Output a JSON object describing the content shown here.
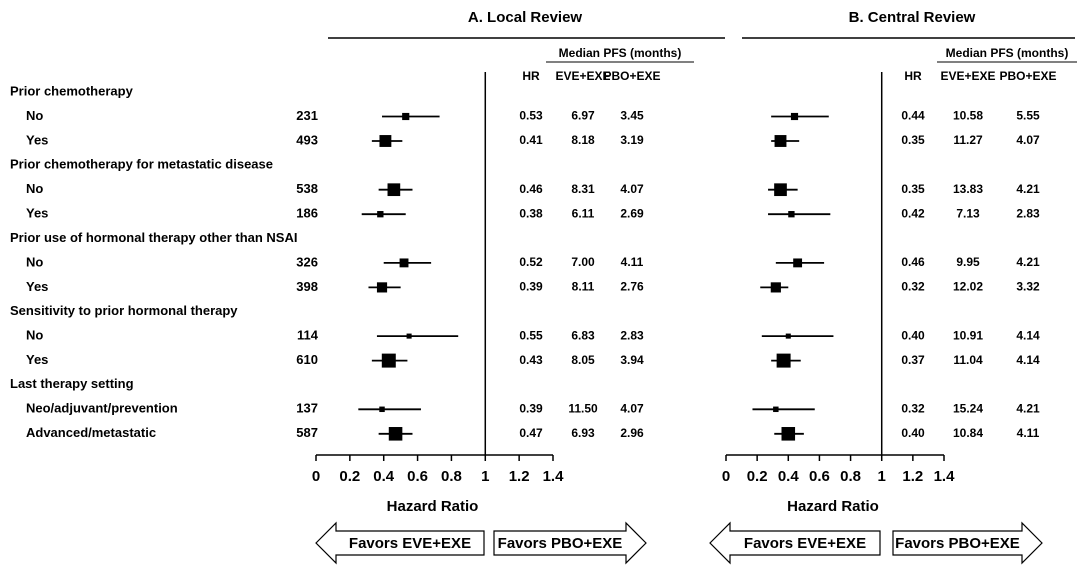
{
  "groups": [
    {
      "label": "Prior chemotherapy",
      "rows": [
        {
          "label": "No",
          "n": 231
        },
        {
          "label": "Yes",
          "n": 493
        }
      ]
    },
    {
      "label": "Prior chemotherapy for metastatic disease",
      "rows": [
        {
          "label": "No",
          "n": 538
        },
        {
          "label": "Yes",
          "n": 186
        }
      ]
    },
    {
      "label": "Prior use of hormonal therapy other than NSAI",
      "rows": [
        {
          "label": "No",
          "n": 326
        },
        {
          "label": "Yes",
          "n": 398
        }
      ]
    },
    {
      "label": "Sensitivity to prior hormonal therapy",
      "rows": [
        {
          "label": "No",
          "n": 114
        },
        {
          "label": "Yes",
          "n": 610
        }
      ]
    },
    {
      "label": "Last therapy setting",
      "rows": [
        {
          "label": "Neo/adjuvant/prevention",
          "n": 137
        },
        {
          "label": "Advanced/metastatic",
          "n": 587
        }
      ]
    }
  ],
  "chart_data": [
    {
      "type": "forest",
      "title": "A. Local Review",
      "table_header": "Median PFS (months)",
      "columns": [
        "HR",
        "EVE+EXE",
        "PBO+EXE"
      ],
      "hr": [
        0.53,
        0.41,
        0.46,
        0.38,
        0.52,
        0.39,
        0.55,
        0.43,
        0.39,
        0.47
      ],
      "value_labels": [
        "0.53",
        "0.41",
        "0.46",
        "0.38",
        "0.52",
        "0.39",
        "0.55",
        "0.43",
        "0.39",
        "0.47"
      ],
      "lower": [
        0.39,
        0.33,
        0.37,
        0.27,
        0.4,
        0.31,
        0.36,
        0.33,
        0.25,
        0.37
      ],
      "upper": [
        0.73,
        0.51,
        0.57,
        0.53,
        0.68,
        0.5,
        0.84,
        0.54,
        0.62,
        0.57
      ],
      "eve": [
        "6.97",
        "8.18",
        "8.31",
        "6.11",
        "7.00",
        "8.11",
        "6.83",
        "8.05",
        "11.50",
        "6.93"
      ],
      "pbo": [
        "3.45",
        "3.19",
        "4.07",
        "2.69",
        "4.11",
        "2.76",
        "2.83",
        "3.94",
        "4.07",
        "2.96"
      ],
      "reference": 1,
      "xlim": [
        0,
        1.4
      ],
      "xticks": [
        0,
        0.2,
        0.4,
        0.6,
        0.8,
        1,
        1.2,
        1.4
      ],
      "xlabel": "Hazard Ratio",
      "arrows": [
        "Favors EVE+EXE",
        "Favors PBO+EXE"
      ],
      "color": "#000000"
    },
    {
      "type": "forest",
      "title": "B. Central Review",
      "table_header": "Median PFS (months)",
      "columns": [
        "HR",
        "EVE+EXE",
        "PBO+EXE"
      ],
      "hr": [
        0.44,
        0.35,
        0.35,
        0.42,
        0.46,
        0.32,
        0.4,
        0.37,
        0.32,
        0.4
      ],
      "value_labels": [
        "0.44",
        "0.35",
        "0.35",
        "0.42",
        "0.46",
        "0.32",
        "0.40",
        "0.37",
        "0.32",
        "0.40"
      ],
      "lower": [
        0.29,
        0.29,
        0.27,
        0.27,
        0.32,
        0.22,
        0.23,
        0.29,
        0.17,
        0.31
      ],
      "upper": [
        0.66,
        0.47,
        0.46,
        0.67,
        0.63,
        0.4,
        0.69,
        0.48,
        0.57,
        0.5
      ],
      "eve": [
        "10.58",
        "11.27",
        "13.83",
        "7.13",
        "9.95",
        "12.02",
        "10.91",
        "11.04",
        "15.24",
        "10.84"
      ],
      "pbo": [
        "5.55",
        "4.07",
        "4.21",
        "2.83",
        "4.21",
        "3.32",
        "4.14",
        "4.14",
        "4.21",
        "4.11"
      ],
      "reference": 1,
      "xlim": [
        0,
        1.4
      ],
      "xticks": [
        0,
        0.2,
        0.4,
        0.6,
        0.8,
        1,
        1.2,
        1.4
      ],
      "xlabel": "Hazard Ratio",
      "arrows": [
        "Favors EVE+EXE",
        "Favors PBO+EXE"
      ],
      "color": "#000000"
    }
  ]
}
